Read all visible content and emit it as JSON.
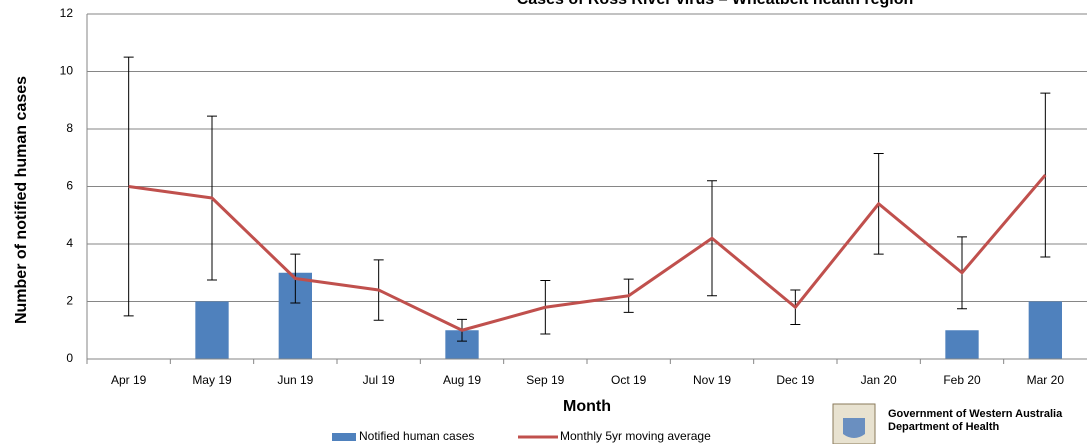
{
  "chart_data": {
    "type": "bar_line",
    "title": "Cases of Ross River virus – Wheatbelt health region",
    "x_label": "Month",
    "y_label": "Number of notified human cases",
    "categories": [
      "Apr 19",
      "May 19",
      "Jun 19",
      "Jul 19",
      "Aug 19",
      "Sep 19",
      "Oct 19",
      "Nov 19",
      "Dec 19",
      "Jan 20",
      "Feb 20",
      "Mar 20"
    ],
    "series": [
      {
        "name": "Notified human cases",
        "type": "bar",
        "color": "#4f81bd",
        "values": [
          0,
          2,
          3,
          0,
          1,
          0,
          0,
          0,
          0,
          0,
          1,
          2
        ]
      },
      {
        "name": "Monthly 5yr moving average",
        "type": "line",
        "color": "#c0504d",
        "values": [
          6,
          5.6,
          2.8,
          2.4,
          1.0,
          1.8,
          2.2,
          4.2,
          1.8,
          5.4,
          3.0,
          6.4
        ],
        "errors": [
          4.5,
          2.85,
          0.85,
          1.05,
          0.38,
          0.93,
          0.58,
          2.0,
          0.6,
          1.75,
          1.25,
          2.85
        ]
      }
    ],
    "ylim": [
      0,
      12
    ],
    "yticks": [
      0,
      2,
      4,
      6,
      8,
      10,
      12
    ],
    "grid": true,
    "legend": "bottom"
  },
  "logo": {
    "line1": "Government of Western Australia",
    "line2": "Department of Health"
  }
}
